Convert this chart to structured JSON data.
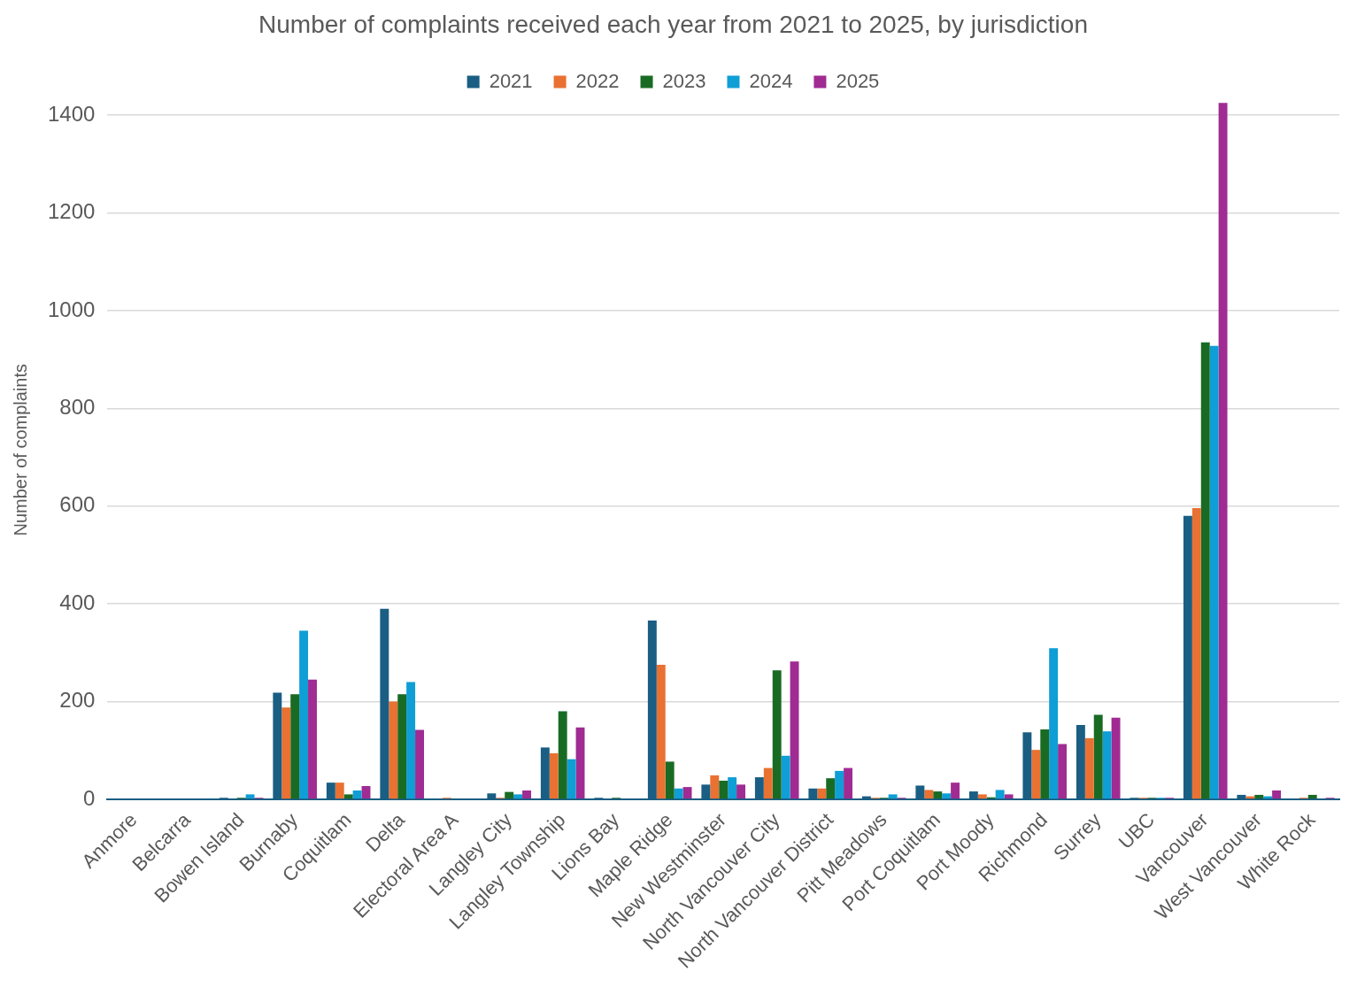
{
  "chart_data": {
    "type": "bar",
    "title": "Number of complaints received each year from 2021 to 2025, by jurisdiction",
    "ylabel": "Number of complaints",
    "categories": [
      "Anmore",
      "Belcarra",
      "Bowen Island",
      "Burnaby",
      "Coquitlam",
      "Delta",
      "Electoral Area A",
      "Langley City",
      "Langley Township",
      "Lions Bay",
      "Maple Ridge",
      "New Westminster",
      "North Vancouver City",
      "North Vancouver District",
      "Pitt Meadows",
      "Port Coquitlam",
      "Port Moody",
      "Richmond",
      "Surrey",
      "UBC",
      "Vancouver",
      "West Vancouver",
      "White Rock"
    ],
    "series": [
      {
        "name": "2021",
        "color": "#1a5e83",
        "values": [
          0,
          0,
          3,
          218,
          34,
          390,
          0,
          12,
          106,
          3,
          366,
          30,
          45,
          22,
          6,
          28,
          16,
          137,
          152,
          3,
          580,
          9,
          0
        ]
      },
      {
        "name": "2022",
        "color": "#e97132",
        "values": [
          0,
          0,
          0,
          188,
          34,
          200,
          3,
          3,
          94,
          0,
          275,
          49,
          64,
          22,
          3,
          19,
          10,
          101,
          125,
          3,
          596,
          6,
          3
        ]
      },
      {
        "name": "2023",
        "color": "#196b24",
        "values": [
          0,
          0,
          3,
          215,
          10,
          215,
          0,
          15,
          180,
          3,
          77,
          38,
          264,
          43,
          3,
          16,
          4,
          143,
          173,
          3,
          935,
          9,
          9
        ]
      },
      {
        "name": "2024",
        "color": "#0f9ed5",
        "values": [
          0,
          0,
          10,
          345,
          18,
          240,
          0,
          10,
          82,
          0,
          22,
          45,
          89,
          58,
          10,
          12,
          19,
          309,
          139,
          3,
          928,
          6,
          0
        ]
      },
      {
        "name": "2025",
        "color": "#a02b93",
        "values": [
          0,
          0,
          3,
          245,
          27,
          142,
          0,
          18,
          147,
          0,
          25,
          30,
          282,
          64,
          3,
          34,
          10,
          113,
          167,
          3,
          1425,
          18,
          3
        ]
      }
    ],
    "ylim": [
      0,
      1430
    ],
    "yticks": [
      0,
      200,
      400,
      600,
      800,
      1000,
      1200,
      1400
    ],
    "grid": "y",
    "legend": "top"
  }
}
